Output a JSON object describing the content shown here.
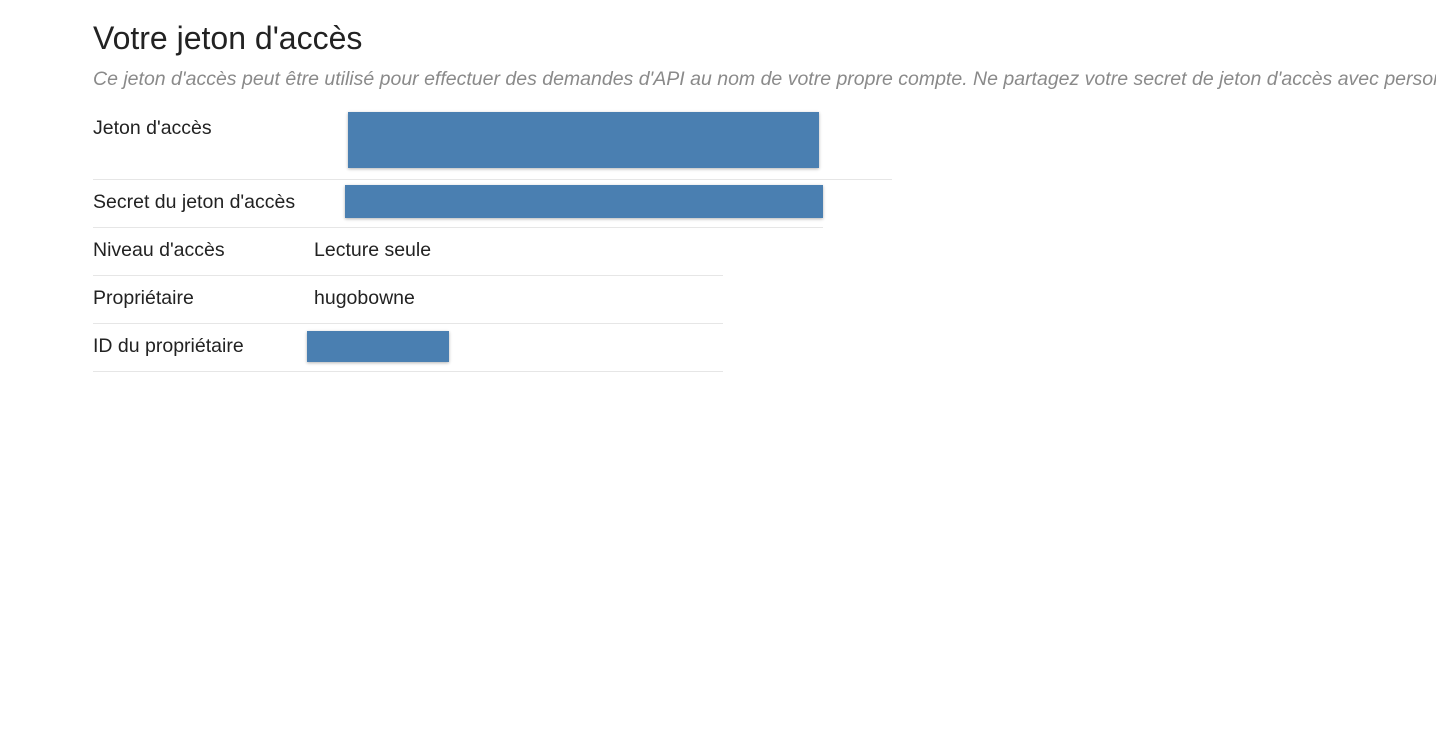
{
  "header": {
    "title": "Votre jeton d'accès",
    "subtitle": "Ce jeton d'accès peut être utilisé pour effectuer des demandes d'API au nom de votre propre compte. Ne partagez votre secret de jeton d'accès avec personne."
  },
  "rows": [
    {
      "label": "Jeton d'accès"
    },
    {
      "label": "Secret du jeton d'accès"
    },
    {
      "label": "Niveau d'accès",
      "value": "Lecture seule"
    },
    {
      "label": "Propriétaire",
      "value": "hugobowne"
    },
    {
      "label": "ID du propriétaire"
    }
  ]
}
